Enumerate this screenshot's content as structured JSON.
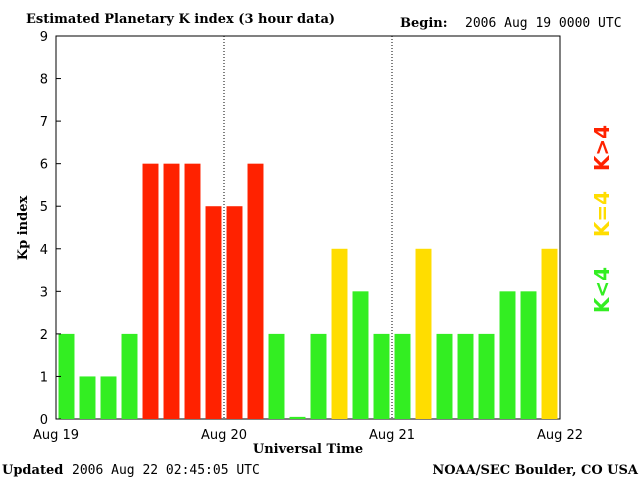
{
  "header": {
    "title": "Estimated Planetary K index (3 hour data)",
    "begin_label": "Begin:",
    "begin_value": "2006 Aug 19 0000 UTC"
  },
  "footer": {
    "updated_label": "Updated",
    "updated_value": "2006 Aug 22 02:45:05 UTC",
    "credit": "NOAA/SEC Boulder, CO USA"
  },
  "legend": {
    "green": "K<4",
    "yellow": "K=4",
    "red": "K>4"
  },
  "colors": {
    "green": "#33ee22",
    "yellow": "#ffdd00",
    "red": "#ff2200"
  },
  "chart_data": {
    "type": "bar",
    "xlabel": "Universal Time",
    "ylabel": "Kp index",
    "ylim": [
      0,
      9
    ],
    "yticks": [
      "0",
      "1",
      "2",
      "3",
      "4",
      "5",
      "6",
      "7",
      "8",
      "9"
    ],
    "xticks": [
      "Aug 19",
      "Aug 20",
      "Aug 21",
      "Aug 22"
    ],
    "bars_per_day": 8,
    "values": [
      2,
      1,
      1,
      2,
      6,
      6,
      6,
      5,
      5,
      6,
      2,
      0.05,
      2,
      4,
      3,
      2,
      2,
      4,
      2,
      2,
      2,
      3,
      3,
      4
    ],
    "grid": "dotted vertical lines at day boundaries"
  }
}
